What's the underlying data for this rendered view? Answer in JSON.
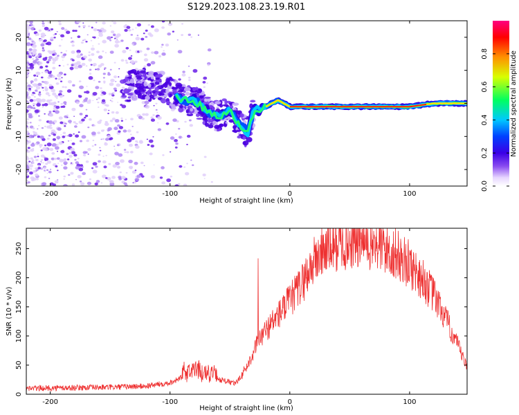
{
  "title": "S129.2023.108.23.19.R01",
  "chart_data": [
    {
      "type": "heatmap",
      "xlabel": "Height of straight line (km)",
      "ylabel": "Frequency (Hz)",
      "xlim": [
        -220,
        148
      ],
      "ylim": [
        -25,
        25
      ],
      "xticks": [
        -200,
        -100,
        0,
        100
      ],
      "yticks": [
        -20,
        -10,
        0,
        10,
        20
      ],
      "colorbar": {
        "label": "Normalized spectral amplitude",
        "range": [
          0,
          1
        ],
        "ticks": [
          "0.0",
          "0.2",
          "0.4",
          "0.6",
          "0.8"
        ],
        "tick_values": [
          0,
          0.2,
          0.4,
          0.6,
          0.8
        ],
        "colors": [
          "#ffffff",
          "#e8d8ff",
          "#8a4cf0",
          "#3b00e6",
          "#0040ff",
          "#00c8ff",
          "#00ff60",
          "#d8ff00",
          "#ff9000",
          "#ff0000",
          "#ff0080"
        ]
      },
      "ridge": {
        "description_points_x": [
          -135,
          -120,
          -110,
          -100,
          -90,
          -80,
          -70,
          -60,
          -50,
          -45,
          -40,
          -35,
          -30,
          -25,
          -20,
          -10,
          0,
          20,
          40,
          60,
          80,
          100,
          120,
          148
        ],
        "description_points_freq": [
          5,
          6,
          5,
          4,
          1,
          1,
          -2,
          -4,
          -2,
          -5,
          -7,
          -9,
          -2,
          -2,
          -1,
          1,
          -1,
          -1,
          -1,
          -1,
          -1,
          -1,
          0,
          0
        ]
      }
    },
    {
      "type": "line",
      "xlabel": "Height of straight line (km)",
      "ylabel": "SNR (10 * v/v)",
      "xlim": [
        -220,
        148
      ],
      "ylim": [
        0,
        285
      ],
      "xticks": [
        -200,
        -100,
        0,
        100
      ],
      "yticks": [
        0,
        50,
        100,
        150,
        200,
        250
      ],
      "color": "#ee3030",
      "envelope": {
        "x": [
          -220,
          -150,
          -120,
          -100,
          -80,
          -60,
          -45,
          -35,
          -28,
          -20,
          -10,
          0,
          10,
          20,
          30,
          40,
          50,
          60,
          70,
          80,
          90,
          100,
          110,
          120,
          130,
          140,
          148
        ],
        "snr": [
          10,
          12,
          14,
          20,
          38,
          26,
          18,
          50,
          85,
          110,
          135,
          160,
          190,
          228,
          250,
          258,
          262,
          262,
          258,
          250,
          238,
          222,
          200,
          170,
          130,
          85,
          45
        ]
      }
    }
  ]
}
